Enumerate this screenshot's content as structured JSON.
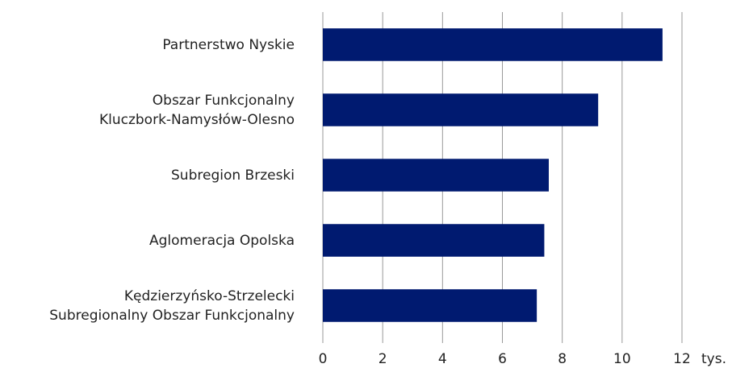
{
  "chart_data": {
    "type": "barh",
    "categories": [
      "Partnerstwo Nyskie",
      "Obszar Funkcjonalny\nKluczbork-Namysłów-Olesno",
      "Subregion Brzeski",
      "Aglomeracja Opolska",
      "Kędzierzyńsko-Strzelecki\nSubregionalny Obszar Funkcjonalny"
    ],
    "values": [
      11.35,
      9.2,
      7.55,
      7.4,
      7.15
    ],
    "color": "#001a70",
    "xlabel": "tys.",
    "xlim": [
      0,
      12
    ],
    "xticks": [
      0,
      2,
      4,
      6,
      8,
      10,
      12
    ],
    "grid": true
  }
}
